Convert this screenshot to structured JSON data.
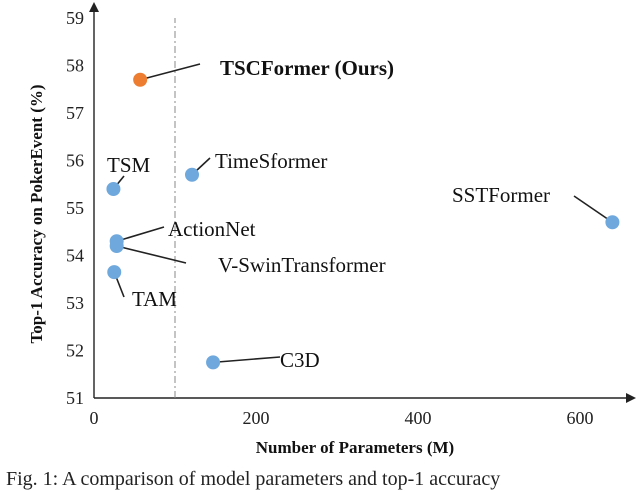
{
  "chart_data": {
    "type": "scatter",
    "title": "",
    "xlabel": "Number of Parameters (M)",
    "ylabel": "Top-1 Accuracy on PokerEvent (%)",
    "xlim": [
      0,
      660
    ],
    "ylim": [
      51,
      59
    ],
    "xticks": [
      0,
      200,
      400,
      600
    ],
    "yticks": [
      51,
      52,
      53,
      54,
      55,
      56,
      57,
      58,
      59
    ],
    "reference_line_x": 100,
    "grid": false,
    "points": [
      {
        "label": "TSCFormer (Ours)",
        "x": 57,
        "y": 57.7,
        "color": "#ED7D31",
        "bold": true
      },
      {
        "label": "TSM",
        "x": 24,
        "y": 55.4,
        "color": "#6FA8DC",
        "bold": false
      },
      {
        "label": "TimeSformer",
        "x": 121,
        "y": 55.7,
        "color": "#6FA8DC",
        "bold": false
      },
      {
        "label": "SSTFormer",
        "x": 640,
        "y": 54.7,
        "color": "#6FA8DC",
        "bold": false
      },
      {
        "label": "ActionNet",
        "x": 28,
        "y": 54.3,
        "color": "#6FA8DC",
        "bold": false
      },
      {
        "label": "V-SwinTransformer",
        "x": 28,
        "y": 54.2,
        "color": "#6FA8DC",
        "bold": false
      },
      {
        "label": "TAM",
        "x": 25,
        "y": 53.65,
        "color": "#6FA8DC",
        "bold": false
      },
      {
        "label": "C3D",
        "x": 147,
        "y": 51.75,
        "color": "#6FA8DC",
        "bold": false
      }
    ]
  },
  "caption": "Fig. 1: A comparison of model parameters and top-1 accuracy"
}
